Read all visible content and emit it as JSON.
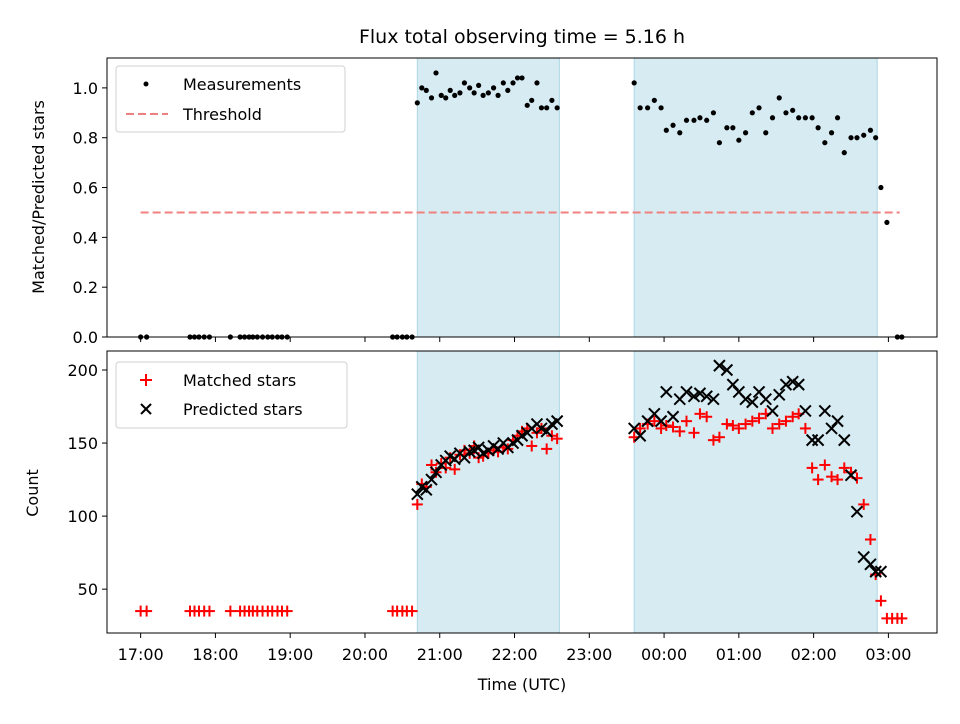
{
  "title": "Flux total observing time = 5.16 h",
  "colors": {
    "band": "#add8e6",
    "threshold": "#f08080",
    "matched": "#ff0000",
    "predicted": "#000000",
    "measurements": "#000000"
  },
  "chart_data": [
    {
      "type": "scatter",
      "ylabel": "Matched/Predicted stars",
      "xlabel": "",
      "ylim": [
        0,
        1.12
      ],
      "yticks": [
        "0.0",
        "0.2",
        "0.4",
        "0.6",
        "0.8",
        "1.0"
      ],
      "ytick_values": [
        0,
        0.2,
        0.4,
        0.6,
        0.8,
        1.0
      ],
      "legend": {
        "placement": "top-left",
        "entries": [
          {
            "label": "Measurements",
            "marker": "dot"
          },
          {
            "label": "Threshold",
            "marker": "dashed"
          }
        ]
      },
      "threshold": {
        "y": 0.5,
        "x_start": 17.0,
        "x_end": 27.15
      },
      "shaded_ranges": [
        [
          20.7,
          22.6
        ],
        [
          23.6,
          26.85
        ]
      ],
      "series": [
        {
          "name": "Measurements",
          "x": [
            17.0,
            17.08,
            17.66,
            17.72,
            17.78,
            17.85,
            17.92,
            18.2,
            18.33,
            18.39,
            18.45,
            18.5,
            18.56,
            18.63,
            18.7,
            18.76,
            18.83,
            18.89,
            18.96,
            20.37,
            20.43,
            20.5,
            20.56,
            20.63,
            20.7,
            20.76,
            20.82,
            20.89,
            20.95,
            21.02,
            21.08,
            21.14,
            21.2,
            21.27,
            21.33,
            21.4,
            21.46,
            21.52,
            21.58,
            21.65,
            21.72,
            21.78,
            21.85,
            21.91,
            21.98,
            22.04,
            22.1,
            22.17,
            22.23,
            22.3,
            22.36,
            22.43,
            22.5,
            22.57,
            23.6,
            23.68,
            23.78,
            23.87,
            23.96,
            24.03,
            24.12,
            24.21,
            24.3,
            24.4,
            24.48,
            24.57,
            24.66,
            24.74,
            24.84,
            24.92,
            25.0,
            25.09,
            25.18,
            25.27,
            25.36,
            25.45,
            25.54,
            25.63,
            25.72,
            25.8,
            25.89,
            25.98,
            26.06,
            26.15,
            26.24,
            26.32,
            26.41,
            26.5,
            26.58,
            26.67,
            26.76,
            26.83,
            26.9,
            26.98,
            27.12,
            27.18
          ],
          "y": [
            0,
            0,
            0,
            0,
            0,
            0,
            0,
            0,
            0,
            0,
            0,
            0,
            0,
            0,
            0,
            0,
            0,
            0,
            0,
            0,
            0,
            0,
            0,
            0,
            0.94,
            1.0,
            0.99,
            0.96,
            1.06,
            0.97,
            0.96,
            0.99,
            0.97,
            0.98,
            1.02,
            1.0,
            0.98,
            1.01,
            0.97,
            0.98,
            1.0,
            0.97,
            1.02,
            0.99,
            1.02,
            1.04,
            1.04,
            0.93,
            0.95,
            1.02,
            0.92,
            0.92,
            0.95,
            0.92,
            1.02,
            0.92,
            0.92,
            0.95,
            0.92,
            0.83,
            0.85,
            0.82,
            0.87,
            0.87,
            0.88,
            0.87,
            0.9,
            0.78,
            0.84,
            0.84,
            0.79,
            0.82,
            0.9,
            0.92,
            0.82,
            0.88,
            0.96,
            0.9,
            0.91,
            0.88,
            0.88,
            0.88,
            0.84,
            0.78,
            0.82,
            0.88,
            0.74,
            0.8,
            0.8,
            0.81,
            0.83,
            0.8,
            0.6,
            0.46,
            0,
            0
          ],
          "x_order_note": ""
        }
      ]
    },
    {
      "type": "scatter",
      "ylabel": "Count",
      "xlabel": "Time (UTC)",
      "ylim": [
        20,
        213
      ],
      "yticks": [
        "50",
        "100",
        "150",
        "200"
      ],
      "ytick_values": [
        50,
        100,
        150,
        200
      ],
      "xticks": [
        "17:00",
        "18:00",
        "19:00",
        "20:00",
        "21:00",
        "22:00",
        "23:00",
        "00:00",
        "01:00",
        "02:00",
        "03:00"
      ],
      "xtick_values": [
        17,
        18,
        19,
        20,
        21,
        22,
        23,
        24,
        25,
        26,
        27
      ],
      "xlim": [
        16.55,
        27.65
      ],
      "legend": {
        "placement": "top-left",
        "entries": [
          {
            "label": "Matched stars",
            "marker": "plus"
          },
          {
            "label": "Predicted stars",
            "marker": "x"
          }
        ]
      },
      "shaded_ranges": [
        [
          20.7,
          22.6
        ],
        [
          23.6,
          26.85
        ]
      ],
      "series": [
        {
          "name": "Matched stars",
          "x": [
            17.0,
            17.08,
            17.66,
            17.72,
            17.78,
            17.85,
            17.92,
            18.2,
            18.33,
            18.39,
            18.45,
            18.5,
            18.56,
            18.63,
            18.7,
            18.76,
            18.83,
            18.89,
            18.96,
            20.37,
            20.43,
            20.5,
            20.56,
            20.63,
            20.7,
            20.76,
            20.82,
            20.89,
            20.95,
            21.02,
            21.08,
            21.14,
            21.2,
            21.27,
            21.33,
            21.4,
            21.46,
            21.52,
            21.58,
            21.65,
            21.72,
            21.78,
            21.85,
            21.91,
            21.98,
            22.04,
            22.1,
            22.17,
            22.23,
            22.3,
            22.36,
            22.43,
            22.5,
            22.57,
            23.6,
            23.68,
            23.78,
            23.87,
            23.96,
            24.03,
            24.12,
            24.21,
            24.3,
            24.4,
            24.48,
            24.57,
            24.66,
            24.74,
            24.84,
            24.92,
            25.0,
            25.09,
            25.18,
            25.27,
            25.36,
            25.45,
            25.54,
            25.63,
            25.72,
            25.8,
            25.89,
            25.98,
            26.06,
            26.15,
            26.24,
            26.32,
            26.41,
            26.5,
            26.58,
            26.67,
            26.76,
            26.83,
            26.9,
            26.98,
            27.05,
            27.12,
            27.18
          ],
          "y": [
            35,
            35,
            35,
            35,
            35,
            35,
            35,
            35,
            35,
            35,
            35,
            35,
            35,
            35,
            35,
            35,
            35,
            35,
            35,
            35,
            35,
            35,
            35,
            35,
            108,
            122,
            120,
            135,
            130,
            136,
            133,
            140,
            132,
            142,
            145,
            143,
            148,
            140,
            141,
            143,
            145,
            144,
            147,
            146,
            152,
            155,
            158,
            160,
            148,
            157,
            160,
            146,
            155,
            153,
            154,
            160,
            163,
            165,
            160,
            162,
            161,
            158,
            165,
            157,
            170,
            168,
            152,
            154,
            163,
            162,
            160,
            163,
            165,
            167,
            170,
            160,
            163,
            165,
            168,
            170,
            160,
            133,
            125,
            135,
            127,
            125,
            133,
            130,
            126,
            108,
            84,
            60,
            42,
            30,
            30,
            30,
            30
          ]
        },
        {
          "name": "Predicted stars",
          "x": [
            20.7,
            20.76,
            20.82,
            20.89,
            20.95,
            21.02,
            21.08,
            21.14,
            21.2,
            21.27,
            21.33,
            21.4,
            21.46,
            21.52,
            21.58,
            21.65,
            21.72,
            21.78,
            21.85,
            21.91,
            21.98,
            22.04,
            22.1,
            22.17,
            22.23,
            22.3,
            22.36,
            22.43,
            22.5,
            22.57,
            23.6,
            23.68,
            23.78,
            23.87,
            23.96,
            24.03,
            24.12,
            24.21,
            24.3,
            24.4,
            24.48,
            24.57,
            24.66,
            24.74,
            24.84,
            24.92,
            25.0,
            25.09,
            25.18,
            25.27,
            25.36,
            25.45,
            25.54,
            25.63,
            25.72,
            25.8,
            25.89,
            25.98,
            26.06,
            26.15,
            26.24,
            26.32,
            26.41,
            26.5,
            26.58,
            26.67,
            26.76,
            26.83,
            26.9
          ],
          "y": [
            115,
            120,
            118,
            125,
            130,
            135,
            138,
            141,
            139,
            143,
            140,
            144,
            145,
            147,
            143,
            145,
            148,
            146,
            150,
            147,
            150,
            152,
            155,
            157,
            160,
            163,
            160,
            158,
            163,
            165,
            160,
            155,
            165,
            170,
            165,
            185,
            168,
            180,
            185,
            182,
            184,
            182,
            180,
            203,
            200,
            190,
            185,
            180,
            178,
            185,
            180,
            172,
            183,
            190,
            192,
            190,
            172,
            152,
            152,
            172,
            160,
            165,
            152,
            128,
            103,
            72,
            67,
            62,
            62
          ],
          "x_order_note": ""
        }
      ]
    }
  ]
}
